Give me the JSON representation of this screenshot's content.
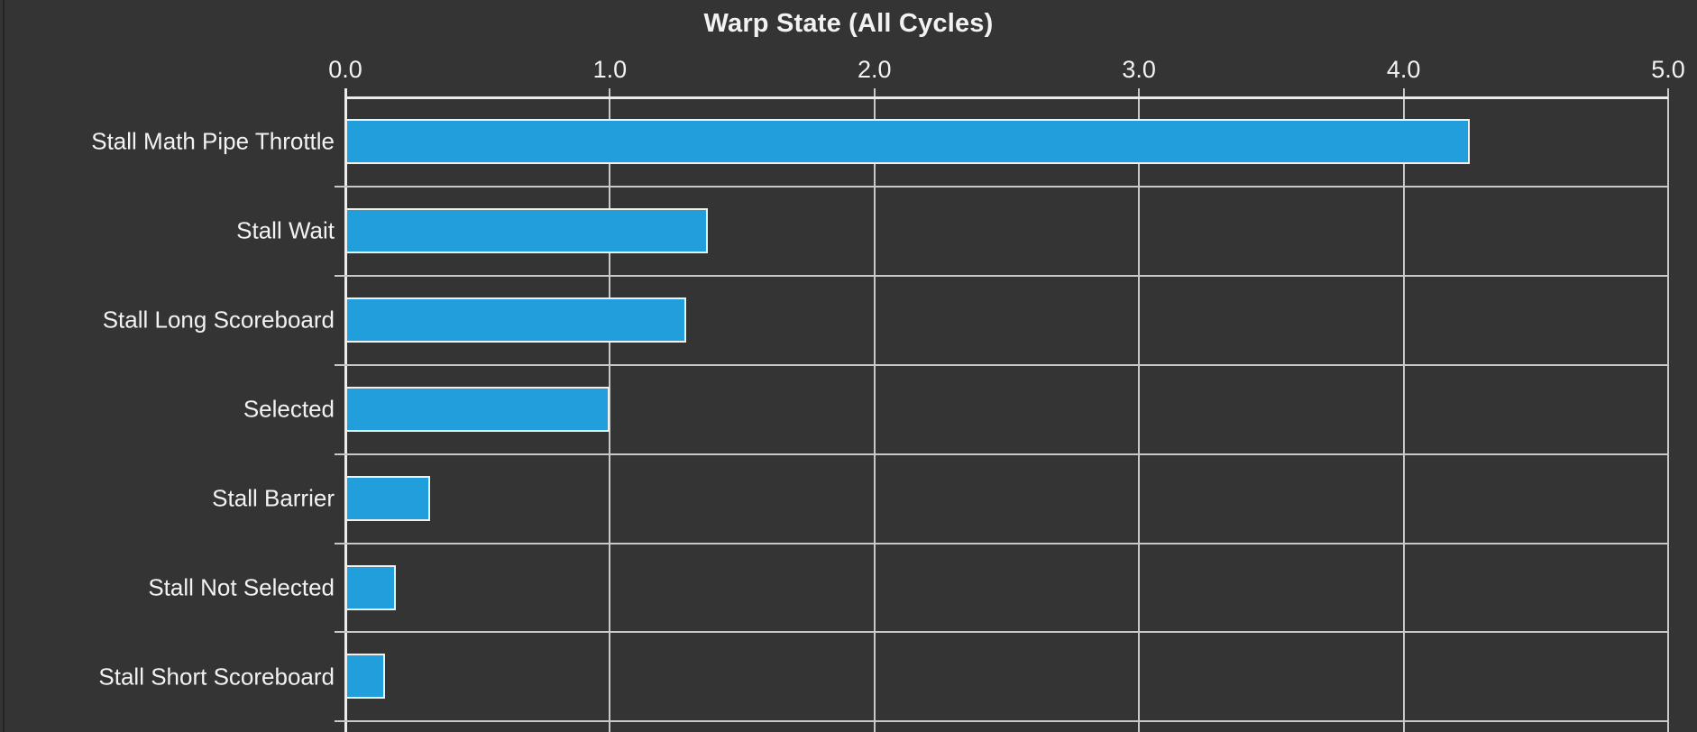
{
  "panel": {
    "title": "Warp State (All Cycles)"
  },
  "chart_data": {
    "type": "bar",
    "orientation": "horizontal",
    "title": "Warp State (All Cycles)",
    "categories": [
      "Stall Math Pipe Throttle",
      "Stall Wait",
      "Stall Long Scoreboard",
      "Selected",
      "Stall Barrier",
      "Stall Not Selected",
      "Stall Short Scoreboard"
    ],
    "values": [
      4.25,
      1.37,
      1.29,
      1.0,
      0.32,
      0.19,
      0.15
    ],
    "xlabel": "",
    "ylabel": "",
    "xlim": [
      0,
      5
    ],
    "x_ticks": [
      "0.0",
      "1.0",
      "2.0",
      "3.0",
      "4.0",
      "5.0"
    ],
    "x_tick_values": [
      0,
      1,
      2,
      3,
      4,
      5
    ],
    "axis_position": "top",
    "grid": "on",
    "legend": "none",
    "colors": {
      "background": "#343434",
      "bar_fill": "#219fdc",
      "bar_border": "#f0f0f0",
      "gridline": "#c9c9c9",
      "axis_line": "#ececec",
      "text": "#f2f2f2"
    }
  }
}
